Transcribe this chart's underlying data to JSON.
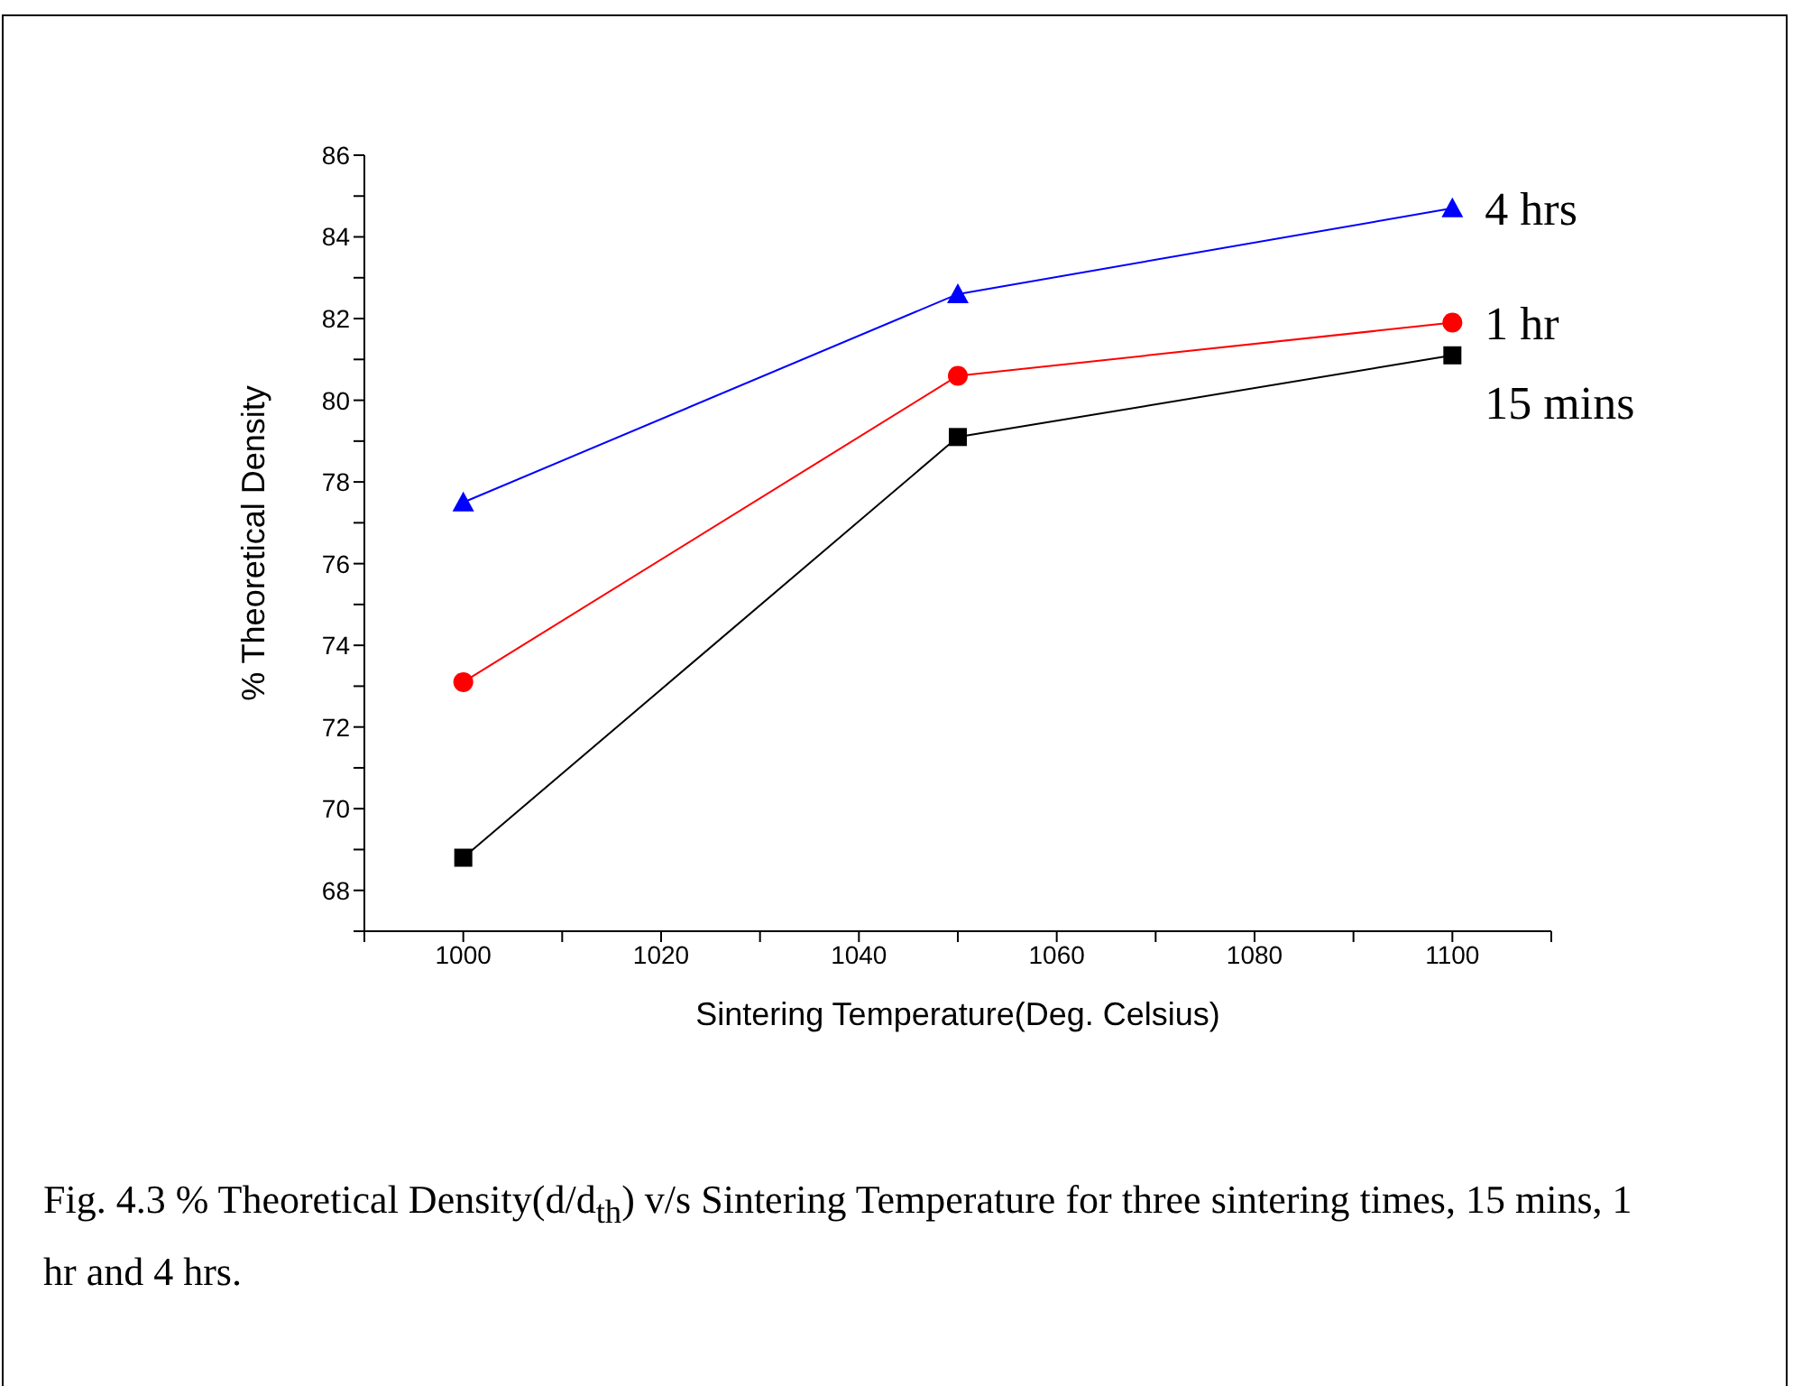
{
  "chart_data": {
    "type": "line",
    "xlabel": "Sintering Temperature(Deg. Celsius)",
    "ylabel": "% Theoretical Density",
    "annotations": [
      "Fig. 4.3  % Theoretical Density(d/d$_{th}$) v/s Sintering Temperature for three sintering times, 15 mins, 1 hr and 4 hrs."
    ],
    "x": [
      1000,
      1050,
      1100
    ],
    "series": [
      {
        "name": "15 mins",
        "color": "#000000",
        "marker": "square",
        "values": [
          68.8,
          79.1,
          81.1
        ]
      },
      {
        "name": "1 hr",
        "color": "#ff0000",
        "marker": "circle",
        "values": [
          73.1,
          80.6,
          81.9
        ]
      },
      {
        "name": "4 hrs",
        "color": "#0000ff",
        "marker": "triangle",
        "values": [
          77.5,
          82.6,
          84.7
        ]
      }
    ],
    "xlim": [
      990,
      1110
    ],
    "xticks": [
      {
        "value": 990,
        "label": null
      },
      1000,
      {
        "value": 1010,
        "label": null
      },
      1020,
      {
        "value": 1030,
        "label": null
      },
      1040,
      {
        "value": 1050,
        "label": null
      },
      1060,
      {
        "value": 1070,
        "label": null
      },
      1080,
      {
        "value": 1090,
        "label": null
      },
      1100,
      {
        "value": 1110,
        "label": null
      }
    ],
    "ylim": [
      67,
      86
    ],
    "yticks": [
      {
        "value": 67,
        "label": null
      },
      68,
      {
        "value": 69,
        "label": null
      },
      70,
      {
        "value": 71,
        "label": null
      },
      72,
      {
        "value": 73,
        "label": null
      },
      74,
      {
        "value": 75,
        "label": null
      },
      76,
      {
        "value": 77,
        "label": null
      },
      78,
      {
        "value": 79,
        "label": null
      },
      80,
      {
        "value": 81,
        "label": null
      },
      82,
      {
        "value": 83,
        "label": null
      },
      84,
      {
        "value": 85,
        "label": null
      },
      86
    ],
    "grid": false,
    "legend": false,
    "line_style": "solid"
  }
}
